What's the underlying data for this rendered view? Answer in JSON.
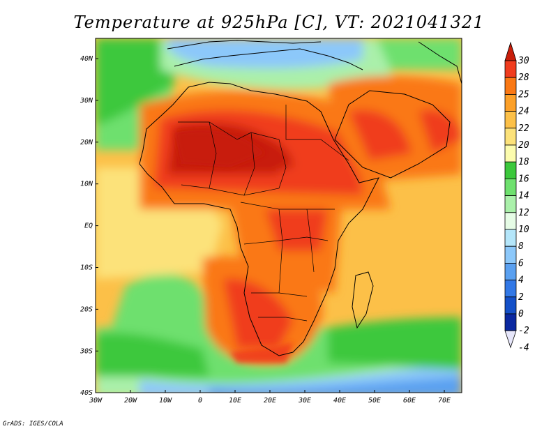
{
  "title": "Temperature at 925hPa [C], VT: 2021041321",
  "credit": "GrADS: IGES/COLA",
  "lat_labels": [
    "40N",
    "30N",
    "20N",
    "10N",
    "EQ",
    "10S",
    "20S",
    "30S",
    "40S"
  ],
  "lon_labels": [
    "30W",
    "20W",
    "10W",
    "0",
    "10E",
    "20E",
    "30E",
    "40E",
    "50E",
    "60E",
    "70E"
  ],
  "colorbar": {
    "labels": [
      "30",
      "28",
      "25",
      "24",
      "22",
      "20",
      "18",
      "16",
      "14",
      "12",
      "10",
      "8",
      "6",
      "4",
      "2",
      "0",
      "-2",
      "-4"
    ],
    "colors": [
      "#c81e0a",
      "#f03c1e",
      "#fa7814",
      "#fca028",
      "#fcc048",
      "#fce27a",
      "#fcfcae",
      "#3cc83c",
      "#6ee06e",
      "#aaf0aa",
      "#e6fce6",
      "#b4e6fa",
      "#8cc8fa",
      "#5aa0f0",
      "#3278e6",
      "#1450c8",
      "#0a28a0",
      "#001478"
    ]
  },
  "map": {
    "region": "Africa",
    "lat_range": [
      -40,
      45
    ],
    "lon_range": [
      -30,
      75
    ]
  }
}
